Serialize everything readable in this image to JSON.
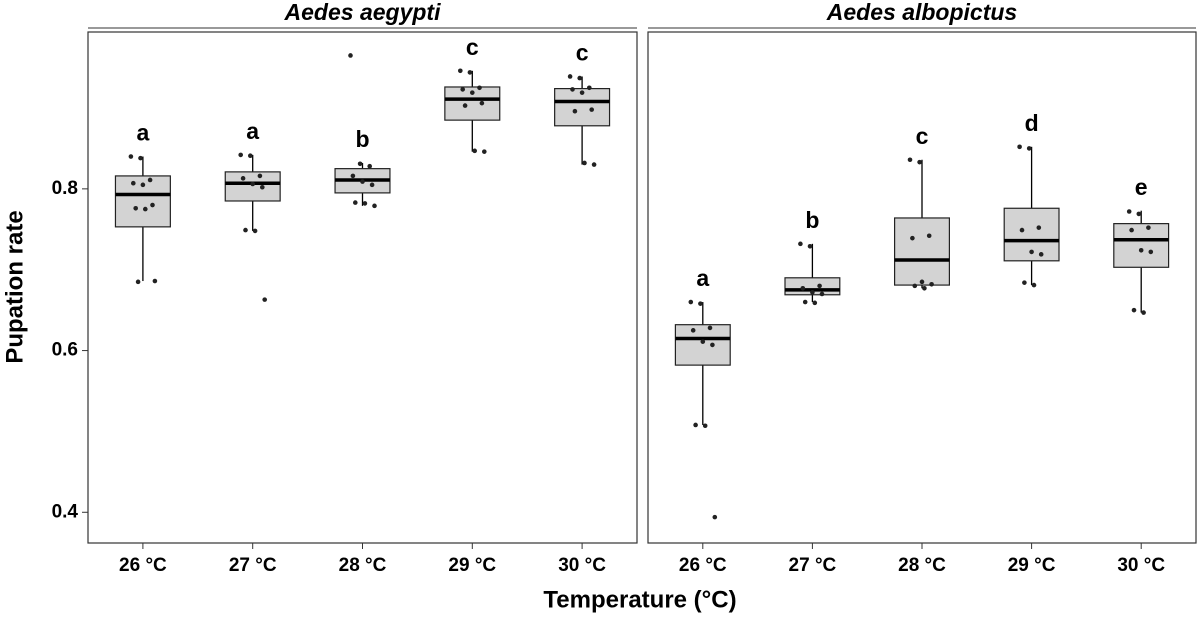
{
  "chart_data": [
    {
      "type": "box",
      "title": "Aedes aegypti",
      "xlabel": "Temperature (°C)",
      "ylabel": "Pupation rate",
      "categories": [
        "26 °C",
        "27 °C",
        "28 °C",
        "29 °C",
        "30 °C"
      ],
      "ylim": [
        0.362,
        0.994
      ],
      "yticks": [
        0.4,
        0.6,
        0.8
      ],
      "color": "#d3d3d3",
      "boxes": [
        {
          "whisker_low": 0.686,
          "q1": 0.753,
          "median": 0.793,
          "q3": 0.816,
          "whisker_high": 0.84,
          "letter": "a",
          "points": [
            0.84,
            0.838,
            0.811,
            0.807,
            0.805,
            0.78,
            0.776,
            0.775,
            0.686,
            0.685
          ]
        },
        {
          "whisker_low": 0.748,
          "q1": 0.785,
          "median": 0.807,
          "q3": 0.821,
          "whisker_high": 0.842,
          "letter": "a",
          "points": [
            0.842,
            0.841,
            0.816,
            0.813,
            0.806,
            0.802,
            0.749,
            0.748,
            0.663
          ]
        },
        {
          "whisker_low": 0.779,
          "q1": 0.795,
          "median": 0.811,
          "q3": 0.825,
          "whisker_high": 0.832,
          "letter": "b",
          "points": [
            0.965,
            0.831,
            0.828,
            0.816,
            0.809,
            0.805,
            0.783,
            0.782,
            0.779
          ]
        },
        {
          "whisker_low": 0.846,
          "q1": 0.885,
          "median": 0.911,
          "q3": 0.926,
          "whisker_high": 0.946,
          "letter": "c",
          "points": [
            0.946,
            0.944,
            0.925,
            0.923,
            0.919,
            0.906,
            0.903,
            0.847,
            0.846
          ]
        },
        {
          "whisker_low": 0.83,
          "q1": 0.878,
          "median": 0.908,
          "q3": 0.924,
          "whisker_high": 0.939,
          "letter": "c",
          "points": [
            0.939,
            0.937,
            0.925,
            0.923,
            0.919,
            0.898,
            0.896,
            0.832,
            0.83
          ]
        }
      ]
    },
    {
      "type": "box",
      "title": "Aedes albopictus",
      "categories": [
        "26 °C",
        "27 °C",
        "28 °C",
        "29 °C",
        "30 °C"
      ],
      "ylim": [
        0.362,
        0.994
      ],
      "color": "#d3d3d3",
      "boxes": [
        {
          "whisker_low": 0.508,
          "q1": 0.582,
          "median": 0.615,
          "q3": 0.632,
          "whisker_high": 0.66,
          "letter": "a",
          "points": [
            0.66,
            0.658,
            0.628,
            0.625,
            0.611,
            0.607,
            0.508,
            0.507,
            0.394
          ]
        },
        {
          "whisker_low": 0.66,
          "q1": 0.669,
          "median": 0.675,
          "q3": 0.69,
          "whisker_high": 0.732,
          "letter": "b",
          "points": [
            0.732,
            0.729,
            0.68,
            0.677,
            0.672,
            0.67,
            0.66,
            0.659
          ]
        },
        {
          "whisker_low": 0.677,
          "q1": 0.681,
          "median": 0.712,
          "q3": 0.764,
          "whisker_high": 0.836,
          "letter": "c",
          "points": [
            0.836,
            0.833,
            0.742,
            0.739,
            0.685,
            0.682,
            0.68,
            0.677
          ]
        },
        {
          "whisker_low": 0.681,
          "q1": 0.711,
          "median": 0.736,
          "q3": 0.776,
          "whisker_high": 0.852,
          "letter": "d",
          "points": [
            0.852,
            0.85,
            0.752,
            0.749,
            0.722,
            0.719,
            0.684,
            0.681
          ]
        },
        {
          "whisker_low": 0.647,
          "q1": 0.703,
          "median": 0.737,
          "q3": 0.757,
          "whisker_high": 0.773,
          "letter": "e",
          "points": [
            0.772,
            0.769,
            0.752,
            0.749,
            0.724,
            0.722,
            0.65,
            0.647
          ]
        }
      ]
    }
  ]
}
